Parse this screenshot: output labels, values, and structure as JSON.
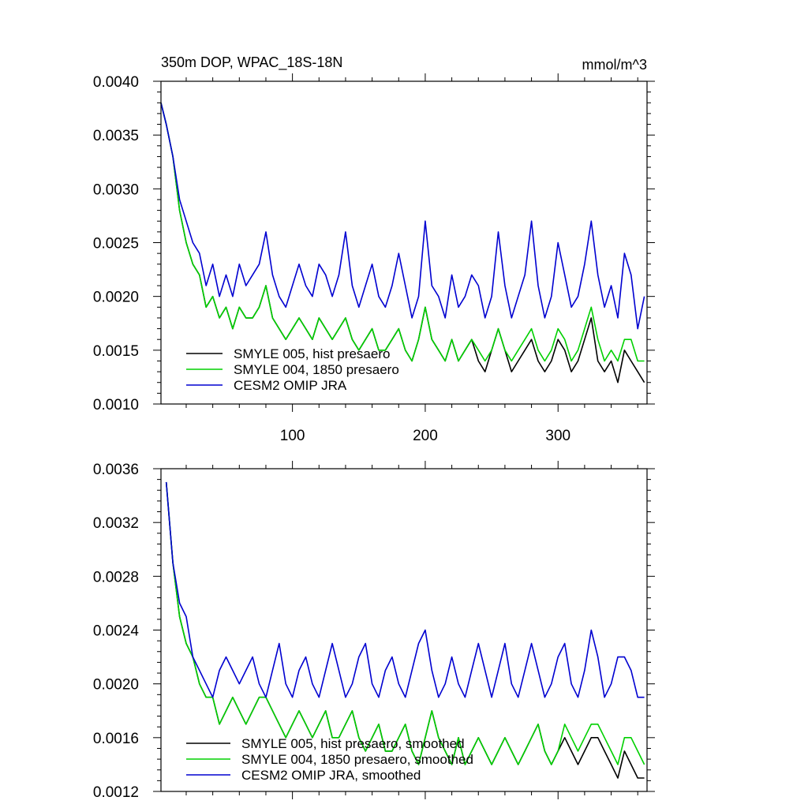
{
  "chart_data": [
    {
      "type": "line",
      "title": "350m DOP, WPAC_18S-18N",
      "units": "mmol/m^3",
      "xlim": [
        1,
        367
      ],
      "ylim": [
        0.001,
        0.004
      ],
      "yticks": [
        {
          "value": 0.001,
          "label": "0.0010"
        },
        {
          "value": 0.0015,
          "label": "0.0015"
        },
        {
          "value": 0.002,
          "label": "0.0020"
        },
        {
          "value": 0.0025,
          "label": "0.0025"
        },
        {
          "value": 0.003,
          "label": "0.0030"
        },
        {
          "value": 0.0035,
          "label": "0.0035"
        },
        {
          "value": 0.004,
          "label": "0.0040"
        }
      ],
      "xticks": [
        {
          "value": 100,
          "label": "100"
        },
        {
          "value": 200,
          "label": "200"
        },
        {
          "value": 300,
          "label": "300"
        }
      ],
      "show_xtick_labels": true,
      "legend_position": "bottom-left",
      "grid": false,
      "series": [
        {
          "name": "SMYLE 005, hist presaero",
          "color": "#000000",
          "x": [
            1,
            5,
            10,
            15,
            20,
            25,
            30,
            35,
            40,
            45,
            50,
            55,
            60,
            65,
            70,
            75,
            80,
            85,
            90,
            95,
            100,
            105,
            110,
            115,
            120,
            125,
            130,
            135,
            140,
            145,
            150,
            155,
            160,
            165,
            170,
            175,
            180,
            185,
            190,
            195,
            200,
            205,
            210,
            215,
            220,
            225,
            230,
            235,
            240,
            245,
            250,
            255,
            260,
            265,
            270,
            275,
            280,
            285,
            290,
            295,
            300,
            305,
            310,
            315,
            320,
            325,
            330,
            335,
            340,
            345,
            350,
            355,
            360,
            365
          ],
          "y": [
            0.0038,
            0.0036,
            0.0033,
            0.0028,
            0.0025,
            0.0023,
            0.0022,
            0.0019,
            0.002,
            0.0018,
            0.0019,
            0.0017,
            0.0019,
            0.0018,
            0.0018,
            0.0019,
            0.0021,
            0.0018,
            0.0017,
            0.0016,
            0.0017,
            0.0018,
            0.0017,
            0.0016,
            0.0018,
            0.0017,
            0.0016,
            0.0017,
            0.0018,
            0.0016,
            0.0015,
            0.0016,
            0.0017,
            0.0015,
            0.0015,
            0.0016,
            0.0017,
            0.0015,
            0.0014,
            0.0016,
            0.0019,
            0.0016,
            0.0015,
            0.0014,
            0.0016,
            0.0014,
            0.0015,
            0.0016,
            0.0014,
            0.0013,
            0.0015,
            0.0017,
            0.0015,
            0.0013,
            0.0014,
            0.0015,
            0.0016,
            0.0014,
            0.0013,
            0.0014,
            0.0016,
            0.0015,
            0.0013,
            0.0014,
            0.0016,
            0.0018,
            0.0014,
            0.0013,
            0.0014,
            0.0012,
            0.0015,
            0.0014,
            0.0013,
            0.0012
          ]
        },
        {
          "name": "SMYLE 004, 1850 presaero",
          "color": "#00d000",
          "x": [
            1,
            5,
            10,
            15,
            20,
            25,
            30,
            35,
            40,
            45,
            50,
            55,
            60,
            65,
            70,
            75,
            80,
            85,
            90,
            95,
            100,
            105,
            110,
            115,
            120,
            125,
            130,
            135,
            140,
            145,
            150,
            155,
            160,
            165,
            170,
            175,
            180,
            185,
            190,
            195,
            200,
            205,
            210,
            215,
            220,
            225,
            230,
            235,
            240,
            245,
            250,
            255,
            260,
            265,
            270,
            275,
            280,
            285,
            290,
            295,
            300,
            305,
            310,
            315,
            320,
            325,
            330,
            335,
            340,
            345,
            350,
            355,
            360,
            365
          ],
          "y": [
            0.0038,
            0.0036,
            0.0033,
            0.0028,
            0.0025,
            0.0023,
            0.0022,
            0.0019,
            0.002,
            0.0018,
            0.0019,
            0.0017,
            0.0019,
            0.0018,
            0.0018,
            0.0019,
            0.0021,
            0.0018,
            0.0017,
            0.0016,
            0.0017,
            0.0018,
            0.0017,
            0.0016,
            0.0018,
            0.0017,
            0.0016,
            0.0017,
            0.0018,
            0.0016,
            0.0015,
            0.0016,
            0.0017,
            0.0015,
            0.0015,
            0.0016,
            0.0017,
            0.0015,
            0.0014,
            0.0016,
            0.0019,
            0.0016,
            0.0015,
            0.0014,
            0.0016,
            0.0014,
            0.0015,
            0.0016,
            0.0015,
            0.0014,
            0.0015,
            0.0017,
            0.0015,
            0.0014,
            0.0015,
            0.0016,
            0.0017,
            0.0015,
            0.0014,
            0.0015,
            0.0017,
            0.0016,
            0.0014,
            0.0015,
            0.0017,
            0.0019,
            0.0016,
            0.0014,
            0.0015,
            0.0014,
            0.0016,
            0.0016,
            0.0014,
            0.0014
          ]
        },
        {
          "name": "CESM2 OMIP JRA",
          "color": "#0000d0",
          "x": [
            1,
            5,
            10,
            15,
            20,
            25,
            30,
            35,
            40,
            45,
            50,
            55,
            60,
            65,
            70,
            75,
            80,
            85,
            90,
            95,
            100,
            105,
            110,
            115,
            120,
            125,
            130,
            135,
            140,
            145,
            150,
            155,
            160,
            165,
            170,
            175,
            180,
            185,
            190,
            195,
            200,
            205,
            210,
            215,
            220,
            225,
            230,
            235,
            240,
            245,
            250,
            255,
            260,
            265,
            270,
            275,
            280,
            285,
            290,
            295,
            300,
            305,
            310,
            315,
            320,
            325,
            330,
            335,
            340,
            345,
            350,
            355,
            360,
            365
          ],
          "y": [
            0.0038,
            0.0036,
            0.0033,
            0.0029,
            0.0027,
            0.0025,
            0.0024,
            0.0021,
            0.0023,
            0.002,
            0.0022,
            0.002,
            0.0023,
            0.0021,
            0.0022,
            0.0023,
            0.0026,
            0.0022,
            0.002,
            0.0019,
            0.0021,
            0.0023,
            0.0021,
            0.002,
            0.0023,
            0.0022,
            0.002,
            0.0022,
            0.0026,
            0.0021,
            0.0019,
            0.0021,
            0.0023,
            0.002,
            0.0019,
            0.0021,
            0.0024,
            0.0021,
            0.0018,
            0.002,
            0.0027,
            0.0021,
            0.002,
            0.0018,
            0.0022,
            0.0019,
            0.002,
            0.0022,
            0.0021,
            0.0018,
            0.002,
            0.0026,
            0.0021,
            0.0018,
            0.002,
            0.0022,
            0.0027,
            0.0021,
            0.0018,
            0.002,
            0.0025,
            0.0022,
            0.0019,
            0.002,
            0.0023,
            0.0027,
            0.0022,
            0.0019,
            0.0021,
            0.0018,
            0.0024,
            0.0022,
            0.0017,
            0.002
          ]
        }
      ]
    },
    {
      "type": "line",
      "title": "",
      "units": "",
      "xlim": [
        1,
        367
      ],
      "ylim": [
        0.0012,
        0.0036
      ],
      "yticks": [
        {
          "value": 0.0012,
          "label": "0.0012"
        },
        {
          "value": 0.0016,
          "label": "0.0016"
        },
        {
          "value": 0.002,
          "label": "0.0020"
        },
        {
          "value": 0.0024,
          "label": "0.0024"
        },
        {
          "value": 0.0028,
          "label": "0.0028"
        },
        {
          "value": 0.0032,
          "label": "0.0032"
        },
        {
          "value": 0.0036,
          "label": "0.0036"
        }
      ],
      "xticks": [
        {
          "value": 100,
          "label": "100"
        },
        {
          "value": 200,
          "label": "200"
        },
        {
          "value": 300,
          "label": "300"
        }
      ],
      "show_xtick_labels": false,
      "legend_position": "bottom-left",
      "grid": false,
      "series": [
        {
          "name": "SMYLE 005, hist presaero, smoothed",
          "color": "#000000",
          "x": [
            5,
            10,
            15,
            20,
            25,
            30,
            35,
            40,
            45,
            50,
            55,
            60,
            65,
            70,
            75,
            80,
            85,
            90,
            95,
            100,
            105,
            110,
            115,
            120,
            125,
            130,
            135,
            140,
            145,
            150,
            155,
            160,
            165,
            170,
            175,
            180,
            185,
            190,
            195,
            200,
            205,
            210,
            215,
            220,
            225,
            230,
            235,
            240,
            245,
            250,
            255,
            260,
            265,
            270,
            275,
            280,
            285,
            290,
            295,
            300,
            305,
            310,
            315,
            320,
            325,
            330,
            335,
            340,
            345,
            350,
            355,
            360,
            365
          ],
          "y": [
            0.0035,
            0.0029,
            0.0025,
            0.0023,
            0.0022,
            0.002,
            0.0019,
            0.0019,
            0.0017,
            0.0018,
            0.0019,
            0.0018,
            0.0017,
            0.0018,
            0.0019,
            0.0019,
            0.0018,
            0.0017,
            0.0016,
            0.0017,
            0.0018,
            0.0017,
            0.0016,
            0.0017,
            0.0018,
            0.0016,
            0.0016,
            0.0017,
            0.0018,
            0.0016,
            0.0015,
            0.0016,
            0.0017,
            0.0015,
            0.0015,
            0.0016,
            0.0017,
            0.0015,
            0.0014,
            0.0016,
            0.0018,
            0.0016,
            0.0015,
            0.0014,
            0.0016,
            0.0014,
            0.0015,
            0.0016,
            0.0015,
            0.0014,
            0.0015,
            0.0016,
            0.0015,
            0.0014,
            0.0015,
            0.0016,
            0.0017,
            0.0015,
            0.0014,
            0.0015,
            0.0016,
            0.0015,
            0.0014,
            0.0015,
            0.0016,
            0.0016,
            0.0015,
            0.0014,
            0.0013,
            0.0015,
            0.0014,
            0.0013,
            0.0013
          ]
        },
        {
          "name": "SMYLE 004, 1850 presaero, smoothed",
          "color": "#00d000",
          "x": [
            5,
            10,
            15,
            20,
            25,
            30,
            35,
            40,
            45,
            50,
            55,
            60,
            65,
            70,
            75,
            80,
            85,
            90,
            95,
            100,
            105,
            110,
            115,
            120,
            125,
            130,
            135,
            140,
            145,
            150,
            155,
            160,
            165,
            170,
            175,
            180,
            185,
            190,
            195,
            200,
            205,
            210,
            215,
            220,
            225,
            230,
            235,
            240,
            245,
            250,
            255,
            260,
            265,
            270,
            275,
            280,
            285,
            290,
            295,
            300,
            305,
            310,
            315,
            320,
            325,
            330,
            335,
            340,
            345,
            350,
            355,
            360,
            365
          ],
          "y": [
            0.0035,
            0.0029,
            0.0025,
            0.0023,
            0.0022,
            0.002,
            0.0019,
            0.0019,
            0.0017,
            0.0018,
            0.0019,
            0.0018,
            0.0017,
            0.0018,
            0.0019,
            0.0019,
            0.0018,
            0.0017,
            0.0016,
            0.0017,
            0.0018,
            0.0017,
            0.0016,
            0.0017,
            0.0018,
            0.0016,
            0.0016,
            0.0017,
            0.0018,
            0.0016,
            0.0015,
            0.0016,
            0.0017,
            0.0015,
            0.0015,
            0.0016,
            0.0017,
            0.0015,
            0.0014,
            0.0016,
            0.0018,
            0.0016,
            0.0015,
            0.0014,
            0.0016,
            0.0014,
            0.0015,
            0.0016,
            0.0015,
            0.0014,
            0.0015,
            0.0016,
            0.0015,
            0.0014,
            0.0015,
            0.0016,
            0.0017,
            0.0015,
            0.0014,
            0.0015,
            0.0017,
            0.0016,
            0.0015,
            0.0016,
            0.0017,
            0.0017,
            0.0016,
            0.0015,
            0.0014,
            0.0016,
            0.0016,
            0.0015,
            0.0014
          ]
        },
        {
          "name": "CESM2 OMIP JRA, smoothed",
          "color": "#0000d0",
          "x": [
            5,
            10,
            15,
            20,
            25,
            30,
            35,
            40,
            45,
            50,
            55,
            60,
            65,
            70,
            75,
            80,
            85,
            90,
            95,
            100,
            105,
            110,
            115,
            120,
            125,
            130,
            135,
            140,
            145,
            150,
            155,
            160,
            165,
            170,
            175,
            180,
            185,
            190,
            195,
            200,
            205,
            210,
            215,
            220,
            225,
            230,
            235,
            240,
            245,
            250,
            255,
            260,
            265,
            270,
            275,
            280,
            285,
            290,
            295,
            300,
            305,
            310,
            315,
            320,
            325,
            330,
            335,
            340,
            345,
            350,
            355,
            360,
            365
          ],
          "y": [
            0.0035,
            0.0029,
            0.0026,
            0.0025,
            0.0022,
            0.0021,
            0.002,
            0.0019,
            0.0021,
            0.0022,
            0.0021,
            0.002,
            0.0021,
            0.0022,
            0.002,
            0.0019,
            0.0021,
            0.0023,
            0.002,
            0.0019,
            0.0021,
            0.0022,
            0.002,
            0.0019,
            0.0021,
            0.0023,
            0.0021,
            0.0019,
            0.002,
            0.0022,
            0.0023,
            0.002,
            0.0019,
            0.0021,
            0.0022,
            0.002,
            0.0019,
            0.0021,
            0.0023,
            0.0024,
            0.0021,
            0.0019,
            0.002,
            0.0022,
            0.002,
            0.0019,
            0.0021,
            0.0023,
            0.0021,
            0.0019,
            0.0021,
            0.0023,
            0.002,
            0.0019,
            0.0021,
            0.0023,
            0.0021,
            0.0019,
            0.002,
            0.0022,
            0.0023,
            0.002,
            0.0019,
            0.0021,
            0.0024,
            0.0022,
            0.0019,
            0.002,
            0.0022,
            0.0022,
            0.0021,
            0.0019,
            0.0019
          ]
        }
      ]
    }
  ]
}
